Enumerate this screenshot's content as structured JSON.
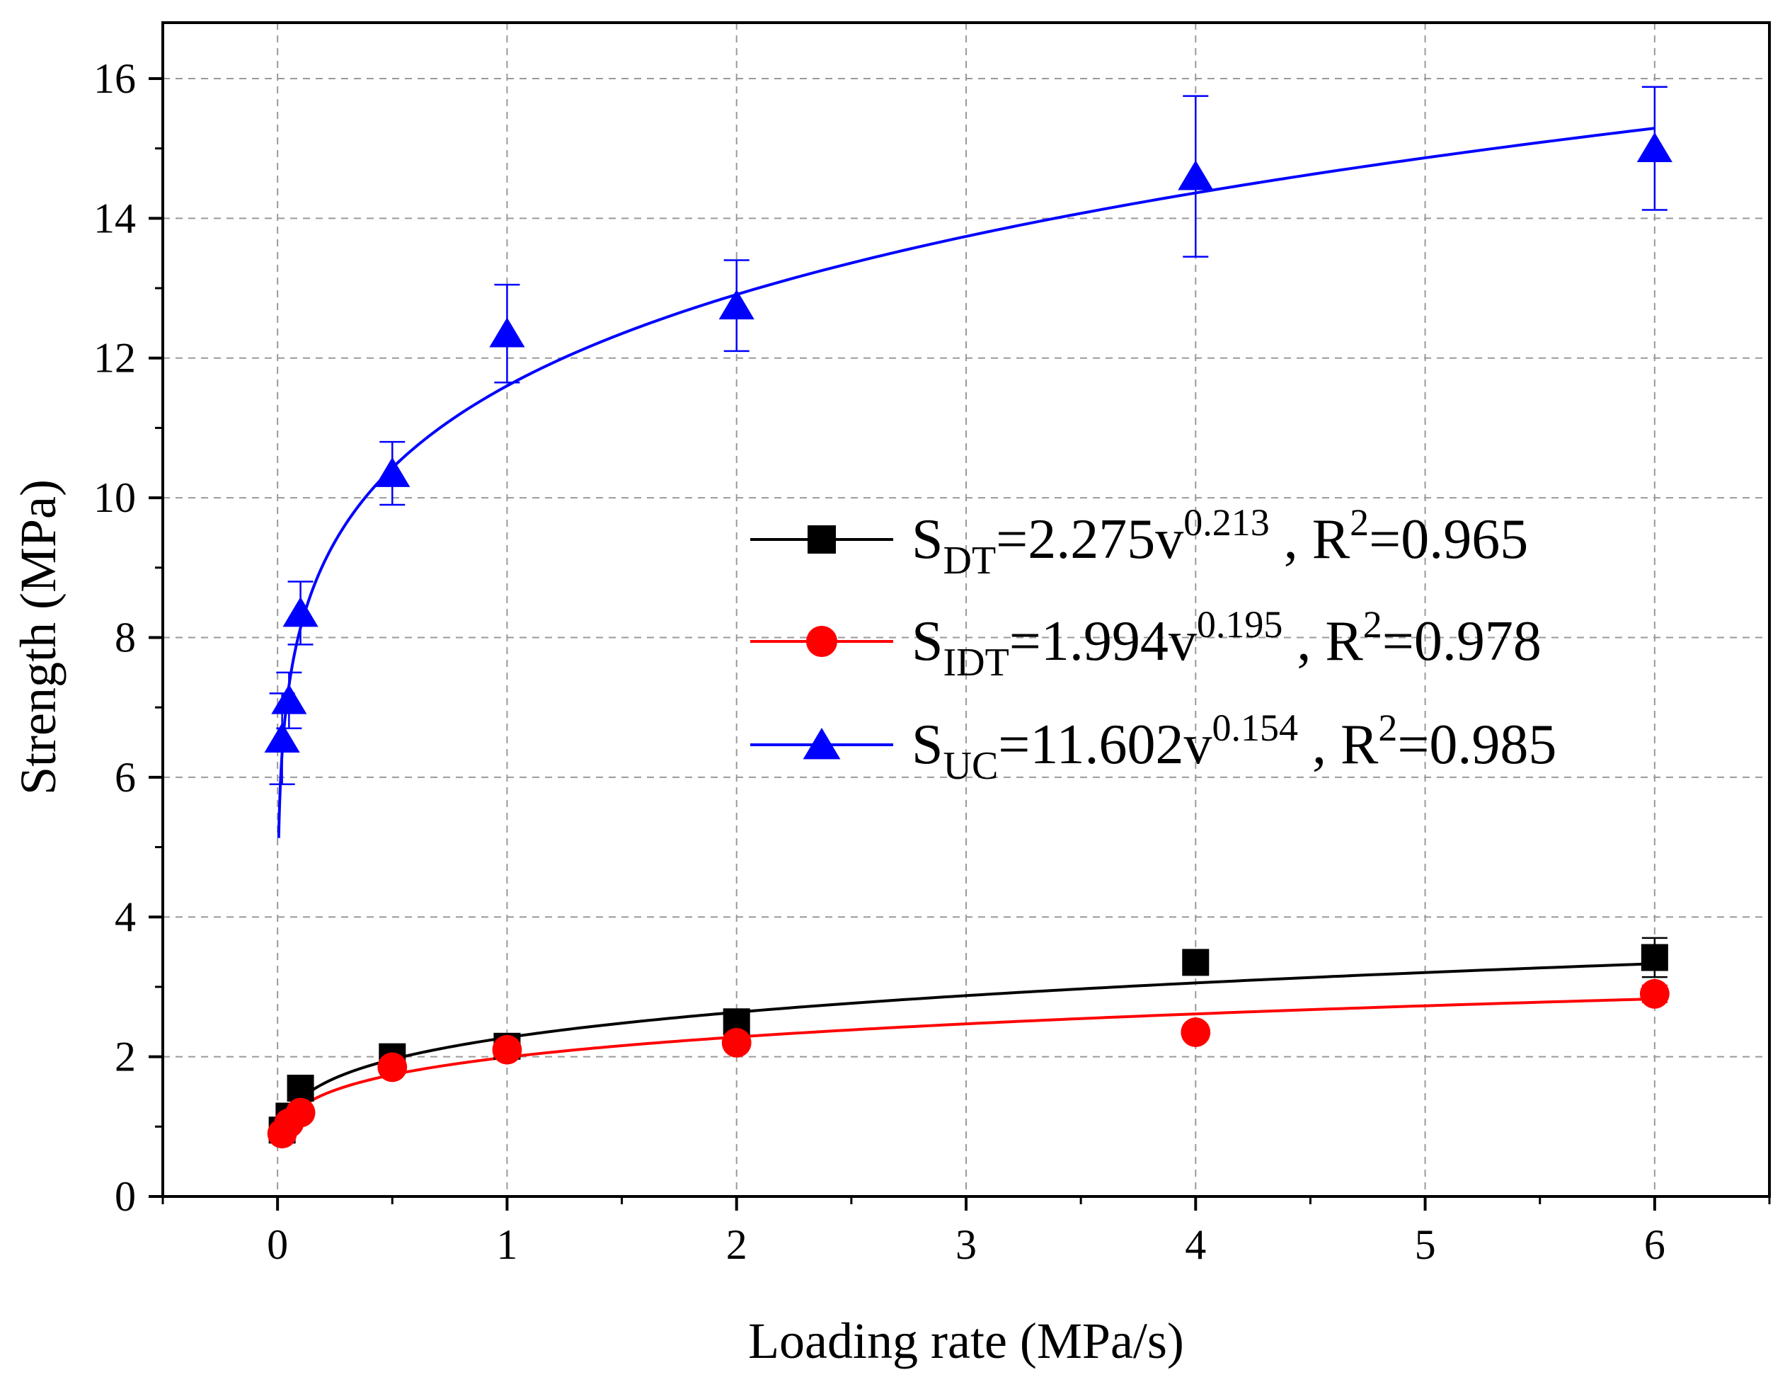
{
  "chart_data": {
    "type": "scatter",
    "xlabel": "Loading rate (MPa/s)",
    "ylabel": "Strength (MPa)",
    "xlim": [
      -0.5,
      6.5
    ],
    "ylim": [
      0,
      16.8
    ],
    "xticks": [
      "0",
      "1",
      "2",
      "3",
      "4",
      "5",
      "6"
    ],
    "yticks": [
      "0",
      "2",
      "4",
      "6",
      "8",
      "10",
      "12",
      "14",
      "16"
    ],
    "grid": true,
    "legend_position": "center-right",
    "series": [
      {
        "name": "SDT",
        "marker": "square",
        "color": "#000000",
        "fit": {
          "a": 2.275,
          "b": 0.213,
          "r2": 0.965
        },
        "legend": {
          "sym": "S",
          "sub": "DT",
          "eq": "=2.275v",
          "exp": "0.213",
          "r2_prefix": " , R",
          "r2_sup": "2",
          "r2_val": "=0.965"
        },
        "x": [
          0.02,
          0.05,
          0.1,
          0.5,
          1,
          2,
          4,
          6
        ],
        "y": [
          0.95,
          1.15,
          1.55,
          2.0,
          2.15,
          2.5,
          3.35,
          3.42
        ],
        "err": [
          0.05,
          0.06,
          0.07,
          0.08,
          0.08,
          0.1,
          0.12,
          0.28
        ]
      },
      {
        "name": "SIDT",
        "marker": "circle",
        "color": "#ff0000",
        "fit": {
          "a": 1.994,
          "b": 0.195,
          "r2": 0.978
        },
        "legend": {
          "sym": "S",
          "sub": "IDT",
          "eq": "=1.994v",
          "exp": "0.195",
          "r2_prefix": " , R",
          "r2_sup": "2",
          "r2_val": "=0.978"
        },
        "x": [
          0.02,
          0.05,
          0.1,
          0.5,
          1,
          2,
          4,
          6
        ],
        "y": [
          0.9,
          1.05,
          1.2,
          1.85,
          2.1,
          2.2,
          2.35,
          2.9
        ],
        "err": [
          0.05,
          0.05,
          0.06,
          0.07,
          0.07,
          0.08,
          0.1,
          0.12
        ]
      },
      {
        "name": "SUC",
        "marker": "triangle",
        "color": "#0000ff",
        "fit": {
          "a": 11.602,
          "b": 0.154,
          "r2": 0.985
        },
        "legend": {
          "sym": "S",
          "sub": "UC",
          "eq": "=11.602v",
          "exp": "0.154",
          "r2_prefix": " , R",
          "r2_sup": "2",
          "r2_val": "=0.985"
        },
        "x": [
          0.02,
          0.05,
          0.1,
          0.5,
          1,
          2,
          4,
          6
        ],
        "y": [
          6.55,
          7.1,
          8.35,
          10.35,
          12.35,
          12.75,
          14.6,
          15.0
        ],
        "err": [
          0.65,
          0.4,
          0.45,
          0.45,
          0.7,
          0.65,
          1.15,
          0.88
        ]
      }
    ]
  }
}
